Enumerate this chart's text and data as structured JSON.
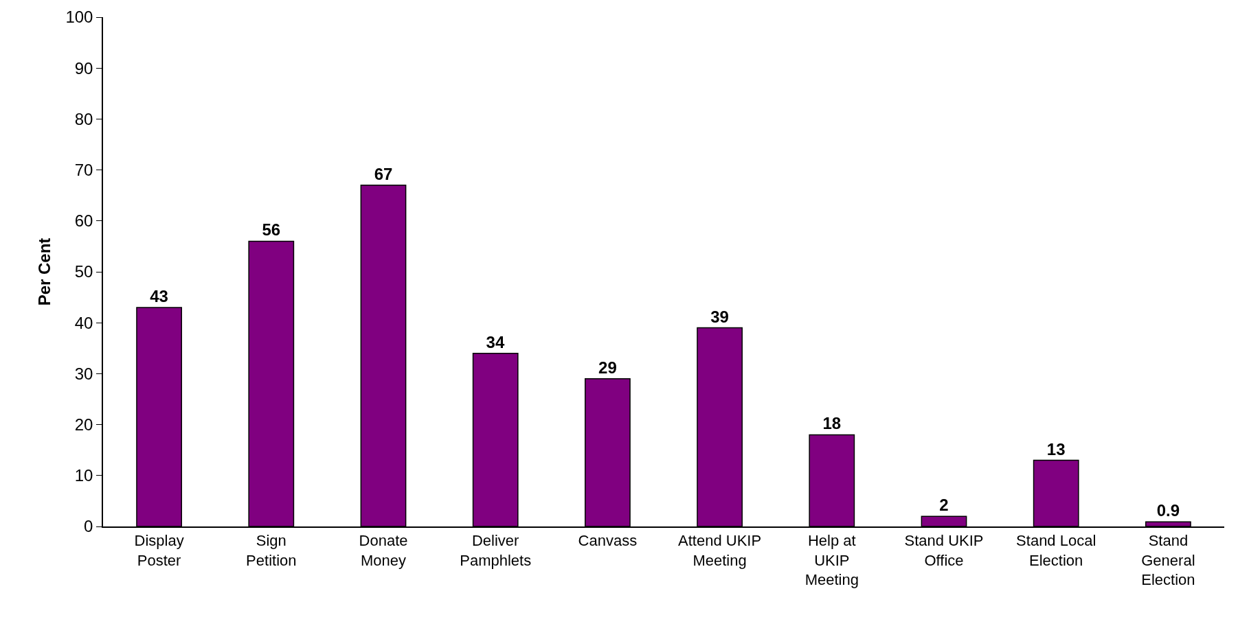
{
  "chart_data": {
    "type": "bar",
    "ylabel": "Per Cent",
    "categories": [
      "Display Poster",
      "Sign Petition",
      "Donate Money",
      "Deliver Pamphlets",
      "Canvass",
      "Attend UKIP Meeting",
      "Help at UKIP Meeting",
      "Stand UKIP Office",
      "Stand Local Election",
      "Stand General Election"
    ],
    "values": [
      43,
      56,
      67,
      34,
      29,
      39,
      18,
      2,
      13,
      0.9
    ],
    "color": "#800080",
    "ylim": [
      0,
      100
    ],
    "yticks": [
      0,
      10,
      20,
      30,
      40,
      50,
      60,
      70,
      80,
      90,
      100
    ],
    "data_labels": true
  }
}
